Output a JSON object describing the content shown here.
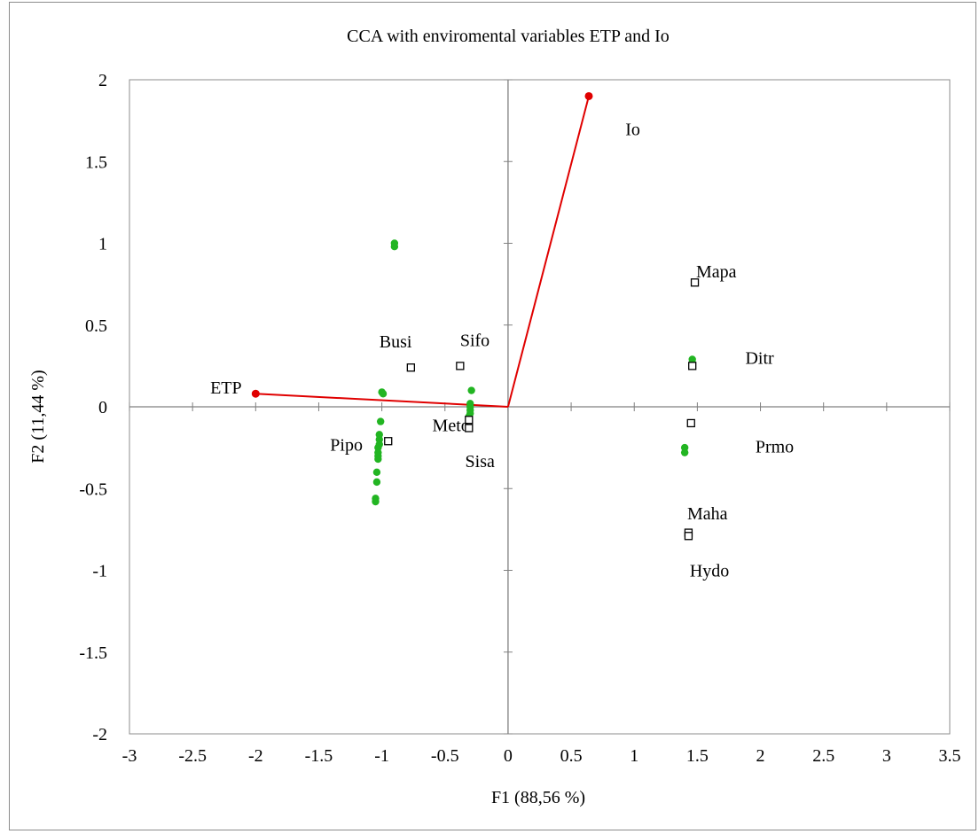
{
  "chart_data": {
    "type": "scatter",
    "title": "CCA with enviromental variables ETP and Io",
    "xlabel": "F1 (88,56 %)",
    "ylabel": "F2 (11,44 %)",
    "xlim": [
      -3,
      3.5
    ],
    "ylim": [
      -2,
      2
    ],
    "xticks": [
      "-3",
      "-2.5",
      "-2",
      "-1.5",
      "-1",
      "-0.5",
      "0",
      "0.5",
      "1",
      "1.5",
      "2",
      "2.5",
      "3",
      "3.5"
    ],
    "yticks": [
      "-2",
      "-1.5",
      "-1",
      "-0.5",
      "0",
      "0.5",
      "1",
      "1.5",
      "2"
    ],
    "grid": false,
    "legend": "none",
    "colors": {
      "vectors": "#e00000",
      "sites": "#22b522",
      "species": "#000000",
      "axes": "#808080"
    },
    "vectors": [
      {
        "label": "ETP",
        "x": -2.0,
        "y": 0.08,
        "label_x": -2.36,
        "label_y": 0.12
      },
      {
        "label": "Io",
        "x": 0.64,
        "y": 1.9,
        "label_x": 0.93,
        "label_y": 1.7
      }
    ],
    "species": [
      {
        "label": "Busi",
        "x": -0.77,
        "y": 0.24,
        "label_x": -1.02,
        "label_y": 0.4
      },
      {
        "label": "Sifo",
        "x": -0.38,
        "y": 0.25,
        "label_x": -0.38,
        "label_y": 0.41
      },
      {
        "label": "Meto",
        "x": -0.31,
        "y": -0.08,
        "label_x": -0.6,
        "label_y": -0.11
      },
      {
        "label": "Sisa",
        "x": -0.31,
        "y": -0.13,
        "label_x": -0.34,
        "label_y": -0.33
      },
      {
        "label": "Pipo",
        "x": -0.95,
        "y": -0.21,
        "label_x": -1.41,
        "label_y": -0.23
      },
      {
        "label": "Mapa",
        "x": 1.48,
        "y": 0.76,
        "label_x": 1.49,
        "label_y": 0.83
      },
      {
        "label": "Ditr",
        "x": 1.46,
        "y": 0.25,
        "label_x": 1.88,
        "label_y": 0.3
      },
      {
        "label": "Prmo",
        "x": 1.45,
        "y": -0.1,
        "label_x": 1.96,
        "label_y": -0.24
      },
      {
        "label": "Maha",
        "x": 1.43,
        "y": -0.77,
        "label_x": 1.42,
        "label_y": -0.65
      },
      {
        "label": "Hydo",
        "x": 1.43,
        "y": -0.79,
        "label_x": 1.44,
        "label_y": -1.0
      }
    ],
    "sites": [
      {
        "x": -0.9,
        "y": 1.0
      },
      {
        "x": -0.9,
        "y": 0.98
      },
      {
        "x": -1.0,
        "y": 0.09
      },
      {
        "x": -0.99,
        "y": 0.08
      },
      {
        "x": -1.01,
        "y": -0.09
      },
      {
        "x": -1.02,
        "y": -0.17
      },
      {
        "x": -1.02,
        "y": -0.2
      },
      {
        "x": -1.02,
        "y": -0.23
      },
      {
        "x": -1.03,
        "y": -0.25
      },
      {
        "x": -1.03,
        "y": -0.28
      },
      {
        "x": -1.03,
        "y": -0.3
      },
      {
        "x": -1.03,
        "y": -0.32
      },
      {
        "x": -1.04,
        "y": -0.4
      },
      {
        "x": -1.04,
        "y": -0.46
      },
      {
        "x": -1.05,
        "y": -0.56
      },
      {
        "x": -1.05,
        "y": -0.58
      },
      {
        "x": -0.29,
        "y": 0.1
      },
      {
        "x": -0.3,
        "y": 0.02
      },
      {
        "x": -0.3,
        "y": 0.0
      },
      {
        "x": -0.3,
        "y": -0.02
      },
      {
        "x": -0.3,
        "y": -0.04
      },
      {
        "x": -0.31,
        "y": -0.06
      },
      {
        "x": 1.46,
        "y": 0.29
      },
      {
        "x": 1.46,
        "y": 0.27
      },
      {
        "x": 1.4,
        "y": -0.25
      },
      {
        "x": 1.4,
        "y": -0.28
      }
    ]
  }
}
